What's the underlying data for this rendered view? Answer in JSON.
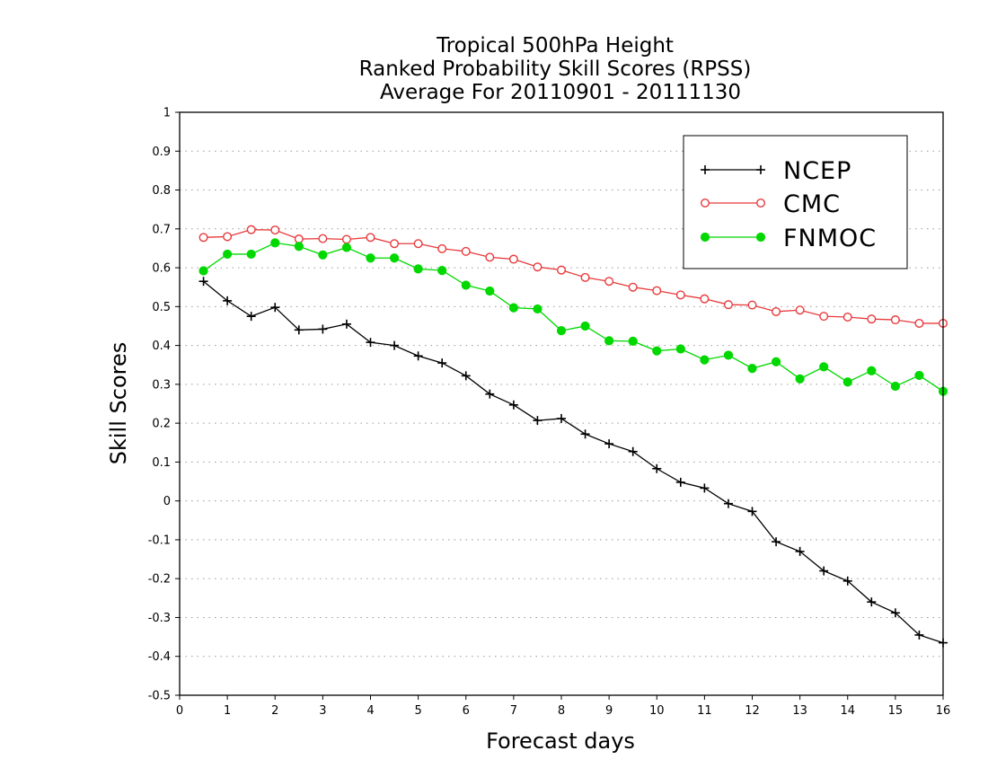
{
  "chart_data": {
    "type": "line",
    "title_lines": [
      "Tropical 500hPa Height",
      "Ranked Probability Skill Scores (RPSS)",
      "Average For 20110901 - 20111130"
    ],
    "xlabel": "Forecast days",
    "ylabel": "Skill Scores",
    "xlim": [
      0,
      16
    ],
    "ylim": [
      -0.5,
      1
    ],
    "x_ticks": [
      "0",
      "1",
      "2",
      "3",
      "4",
      "5",
      "6",
      "7",
      "8",
      "9",
      "10",
      "11",
      "12",
      "13",
      "14",
      "15",
      "16"
    ],
    "y_ticks": [
      "1",
      "0.9",
      "0.8",
      "0.7",
      "0.6",
      "0.5",
      "0.4",
      "0.3",
      "0.2",
      "0.1",
      "0",
      "-0.1",
      "-0.2",
      "-0.3",
      "-0.4",
      "-0.5"
    ],
    "y_tick_values": [
      1,
      0.9,
      0.8,
      0.7,
      0.6,
      0.5,
      0.4,
      0.3,
      0.2,
      0.1,
      0,
      -0.1,
      -0.2,
      -0.3,
      -0.4,
      -0.5
    ],
    "grid": "horizontal dotted",
    "legend_position": "top-right",
    "x": [
      0.5,
      1,
      1.5,
      2,
      2.5,
      3,
      3.5,
      4,
      4.5,
      5,
      5.5,
      6,
      6.5,
      7,
      7.5,
      8,
      8.5,
      9,
      9.5,
      10,
      10.5,
      11,
      11.5,
      12,
      12.5,
      13,
      13.5,
      14,
      14.5,
      15,
      15.5,
      16
    ],
    "series": [
      {
        "name": "NCEP",
        "color": "#000000",
        "marker": "plus",
        "values": [
          0.565,
          0.515,
          0.475,
          0.498,
          0.44,
          0.442,
          0.455,
          0.408,
          0.4,
          0.373,
          0.355,
          0.322,
          0.275,
          0.247,
          0.207,
          0.212,
          0.172,
          0.147,
          0.127,
          0.083,
          0.048,
          0.033,
          -0.007,
          -0.027,
          -0.105,
          -0.13,
          -0.18,
          -0.206,
          -0.26,
          -0.288,
          -0.345,
          -0.365
        ]
      },
      {
        "name": "CMC",
        "color": "#e8393c",
        "marker": "open-circle",
        "values": [
          0.678,
          0.68,
          0.698,
          0.697,
          0.674,
          0.675,
          0.673,
          0.678,
          0.662,
          0.662,
          0.649,
          0.642,
          0.627,
          0.622,
          0.602,
          0.594,
          0.575,
          0.565,
          0.55,
          0.541,
          0.53,
          0.52,
          0.505,
          0.504,
          0.487,
          0.491,
          0.475,
          0.473,
          0.468,
          0.466,
          0.457,
          0.457
        ]
      },
      {
        "name": "FNMOC",
        "color": "#00d800",
        "marker": "filled-circle",
        "values": [
          0.592,
          0.635,
          0.635,
          0.664,
          0.655,
          0.633,
          0.652,
          0.625,
          0.625,
          0.597,
          0.593,
          0.555,
          0.54,
          0.497,
          0.494,
          0.438,
          0.45,
          0.412,
          0.411,
          0.386,
          0.391,
          0.363,
          0.375,
          0.341,
          0.358,
          0.314,
          0.345,
          0.306,
          0.335,
          0.295,
          0.323,
          0.282
        ]
      }
    ]
  }
}
